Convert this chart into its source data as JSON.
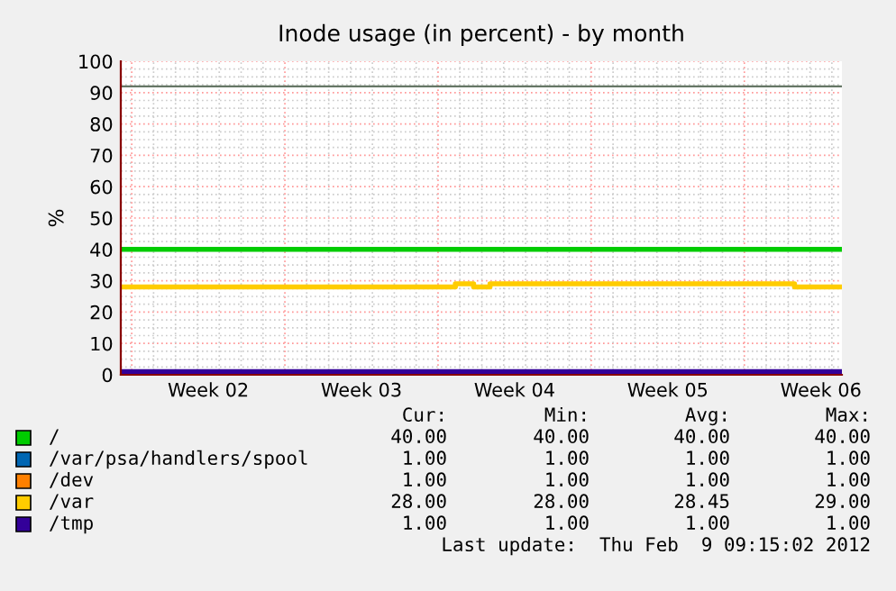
{
  "chart_data": {
    "type": "step",
    "title": "Inode usage (in percent) - by month",
    "ylabel": "%",
    "xlim": [
      "2012-01-08T12:00",
      "2012-02-10T11:00"
    ],
    "ylim": [
      0,
      100
    ],
    "xticks": [
      {
        "value": "2012-01-12T12:00",
        "label": "Week 02"
      },
      {
        "value": "2012-01-19T12:00",
        "label": "Week 03"
      },
      {
        "value": "2012-01-26T12:00",
        "label": "Week 04"
      },
      {
        "value": "2012-02-02T12:00",
        "label": "Week 05"
      },
      {
        "value": "2012-02-09T12:00",
        "label": "Week 06"
      }
    ],
    "yticks": [
      0,
      10,
      20,
      30,
      40,
      50,
      60,
      70,
      80,
      90,
      100
    ],
    "grid": true,
    "legend": "bottom",
    "line_style": "solid",
    "marker": "none",
    "series": [
      {
        "name": "/",
        "color": "#00cc00",
        "x": [
          "2012-01-08T12:00",
          "2012-02-10T11:00"
        ],
        "values": [
          40,
          40
        ]
      },
      {
        "name": "/var/psa/handlers/spool",
        "color": "#0066b3"
      },
      {
        "name": "/dev",
        "color": "#ff8000"
      },
      {
        "name": "/var",
        "color": "#ffcc00",
        "x": [
          "2012-01-08T12:00",
          "2012-01-23T19:00",
          "2012-01-24T15:00",
          "2012-01-25T09:00",
          "2012-02-08T07:00",
          "2012-02-10T11:00"
        ],
        "values": [
          28,
          29,
          28,
          29,
          28,
          28
        ]
      },
      {
        "name": "/tmp",
        "color": "#330099",
        "x": [
          "2012-01-08T12:00",
          "2012-02-10T11:00"
        ],
        "values": [
          1,
          1
        ]
      }
    ],
    "ref_lines": [
      {
        "axis": "y",
        "value": 92,
        "color": "#667766"
      }
    ],
    "annotations": [
      "Cur:",
      "Min:",
      "Avg:",
      "Max:",
      "40.00",
      "40.00",
      "40.00",
      "40.00",
      "1.00",
      "1.00",
      "1.00",
      "1.00",
      "1.00",
      "1.00",
      "1.00",
      "1.00",
      "28.00",
      "28.00",
      "28.45",
      "29.00",
      "1.00",
      "1.00",
      "1.00",
      "1.00",
      "Last update:  Thu Feb  9 09:15:02 2012"
    ]
  }
}
